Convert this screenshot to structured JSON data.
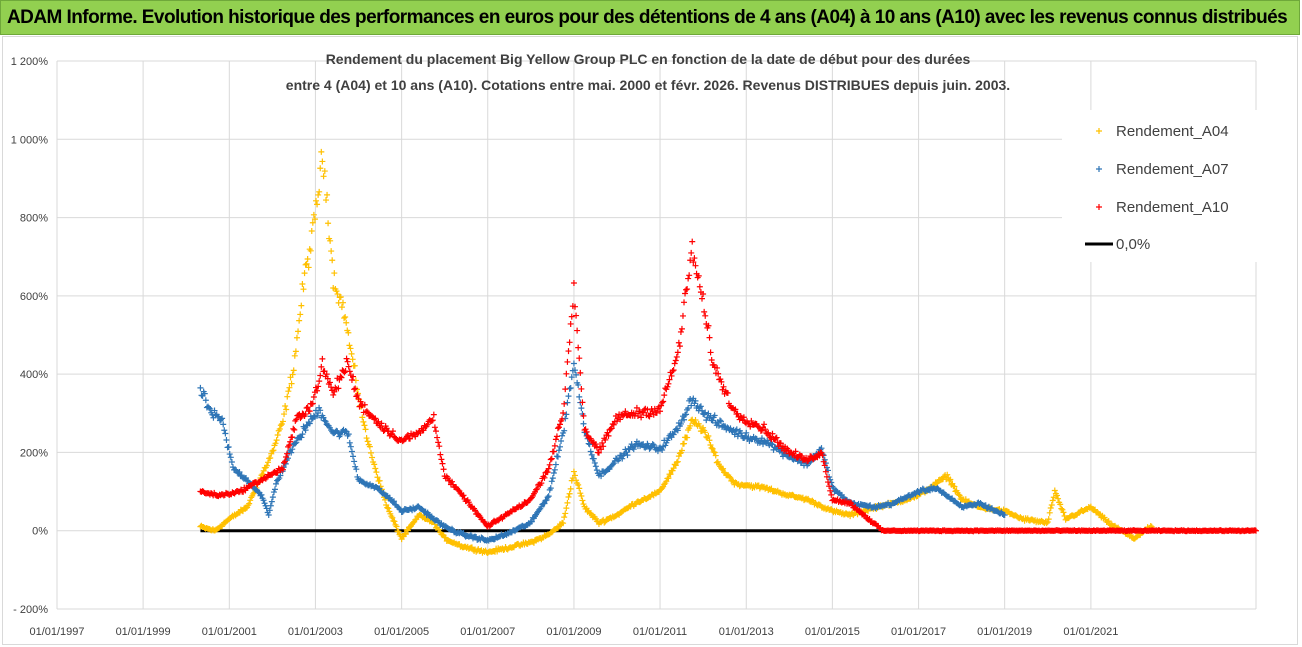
{
  "banner": {
    "title": "ADAM Informe. Evolution historique des performances en euros pour des détentions de 4 ans (A04) à 10 ans (A10) avec les revenus connus distribués"
  },
  "colors": {
    "banner_bg": "#92d050",
    "A04": "#ffc000",
    "A07": "#2e75b6",
    "A10": "#ff0000",
    "zero": "#000000",
    "grid": "#d9d9d9"
  },
  "chart_data": {
    "type": "scatter",
    "title_lines": [
      "Rendement du placement Big Yellow Group PLC en fonction de la date de début pour des durées",
      "entre 4 (A04) et 10 ans (A10). Cotations entre mai. 2000 et févr. 2026. Revenus DISTRIBUES depuis juin. 2003."
    ],
    "xlabel": "",
    "ylabel": "",
    "ylim": [
      -200,
      1200
    ],
    "xlim": [
      "1997-01-01",
      "2024-11-01"
    ],
    "y_ticks": [
      "1 200%",
      "1 000%",
      "800%",
      "600%",
      "400%",
      "200%",
      "0%",
      "- 200%"
    ],
    "x_ticks": [
      "01/01/1997",
      "01/01/1999",
      "01/01/2001",
      "01/01/2003",
      "01/01/2005",
      "01/01/2007",
      "01/01/2009",
      "01/01/2011",
      "01/01/2013",
      "01/01/2015",
      "01/01/2017",
      "01/01/2019",
      "01/01/2021"
    ],
    "grid": true,
    "legend_position": "top-right",
    "legend": [
      "Rendement_A04",
      "Rendement_A07",
      "Rendement_A10",
      "0,0%"
    ],
    "series": [
      {
        "name": "Rendement_A04",
        "marker": "+",
        "points": [
          [
            "2000-05-01",
            10
          ],
          [
            "2000-09-01",
            0
          ],
          [
            "2001-01-01",
            30
          ],
          [
            "2001-06-01",
            60
          ],
          [
            "2001-10-01",
            140
          ],
          [
            "2002-01-01",
            200
          ],
          [
            "2002-04-01",
            280
          ],
          [
            "2002-07-01",
            420
          ],
          [
            "2002-10-01",
            650
          ],
          [
            "2002-12-01",
            740
          ],
          [
            "2003-03-01",
            950
          ],
          [
            "2003-04-01",
            880
          ],
          [
            "2003-06-01",
            650
          ],
          [
            "2003-09-01",
            560
          ],
          [
            "2003-12-01",
            400
          ],
          [
            "2004-03-01",
            250
          ],
          [
            "2004-06-01",
            150
          ],
          [
            "2004-09-01",
            60
          ],
          [
            "2005-01-01",
            -20
          ],
          [
            "2005-06-01",
            40
          ],
          [
            "2005-10-01",
            20
          ],
          [
            "2006-01-01",
            -20
          ],
          [
            "2006-06-01",
            -40
          ],
          [
            "2007-01-01",
            -55
          ],
          [
            "2007-06-01",
            -45
          ],
          [
            "2008-01-01",
            -30
          ],
          [
            "2008-06-01",
            -10
          ],
          [
            "2008-10-01",
            20
          ],
          [
            "2009-01-01",
            150
          ],
          [
            "2009-04-01",
            60
          ],
          [
            "2009-08-01",
            20
          ],
          [
            "2010-01-01",
            40
          ],
          [
            "2010-06-01",
            70
          ],
          [
            "2011-01-01",
            100
          ],
          [
            "2011-06-01",
            180
          ],
          [
            "2011-10-01",
            280
          ],
          [
            "2012-01-01",
            260
          ],
          [
            "2012-06-01",
            160
          ],
          [
            "2012-10-01",
            120
          ],
          [
            "2013-06-01",
            110
          ],
          [
            "2014-01-01",
            90
          ],
          [
            "2014-06-01",
            80
          ],
          [
            "2015-01-01",
            50
          ],
          [
            "2015-06-01",
            40
          ],
          [
            "2016-01-01",
            60
          ],
          [
            "2016-06-01",
            70
          ],
          [
            "2017-01-01",
            90
          ],
          [
            "2017-09-01",
            140
          ],
          [
            "2018-01-01",
            80
          ],
          [
            "2018-06-01",
            60
          ],
          [
            "2019-01-01",
            50
          ],
          [
            "2019-06-01",
            30
          ],
          [
            "2020-01-01",
            20
          ],
          [
            "2020-03-01",
            100
          ],
          [
            "2020-06-01",
            30
          ],
          [
            "2021-01-01",
            60
          ],
          [
            "2021-06-01",
            20
          ],
          [
            "2022-01-01",
            -20
          ],
          [
            "2022-04-01",
            0
          ],
          [
            "2022-06-01",
            10
          ]
        ]
      },
      {
        "name": "Rendement_A07",
        "marker": "+",
        "points": [
          [
            "2000-05-01",
            360
          ],
          [
            "2000-08-01",
            300
          ],
          [
            "2000-11-01",
            280
          ],
          [
            "2001-02-01",
            160
          ],
          [
            "2001-06-01",
            130
          ],
          [
            "2001-10-01",
            90
          ],
          [
            "2001-12-01",
            40
          ],
          [
            "2002-02-01",
            120
          ],
          [
            "2002-06-01",
            200
          ],
          [
            "2002-10-01",
            260
          ],
          [
            "2003-02-01",
            310
          ],
          [
            "2003-06-01",
            250
          ],
          [
            "2003-10-01",
            250
          ],
          [
            "2004-01-01",
            130
          ],
          [
            "2004-06-01",
            110
          ],
          [
            "2004-10-01",
            80
          ],
          [
            "2005-01-01",
            50
          ],
          [
            "2005-06-01",
            60
          ],
          [
            "2005-10-01",
            30
          ],
          [
            "2006-01-01",
            10
          ],
          [
            "2006-06-01",
            -10
          ],
          [
            "2007-01-01",
            -25
          ],
          [
            "2007-06-01",
            -10
          ],
          [
            "2008-01-01",
            20
          ],
          [
            "2008-06-01",
            90
          ],
          [
            "2008-10-01",
            250
          ],
          [
            "2009-01-01",
            430
          ],
          [
            "2009-04-01",
            260
          ],
          [
            "2009-08-01",
            140
          ],
          [
            "2010-01-01",
            180
          ],
          [
            "2010-06-01",
            220
          ],
          [
            "2011-01-01",
            210
          ],
          [
            "2011-06-01",
            260
          ],
          [
            "2011-10-01",
            340
          ],
          [
            "2012-01-01",
            300
          ],
          [
            "2012-06-01",
            270
          ],
          [
            "2013-01-01",
            240
          ],
          [
            "2013-06-01",
            230
          ],
          [
            "2014-01-01",
            190
          ],
          [
            "2014-06-01",
            170
          ],
          [
            "2014-10-01",
            210
          ],
          [
            "2015-01-01",
            110
          ],
          [
            "2015-06-01",
            70
          ],
          [
            "2016-01-01",
            60
          ],
          [
            "2016-06-01",
            70
          ],
          [
            "2017-01-01",
            100
          ],
          [
            "2017-06-01",
            110
          ],
          [
            "2018-01-01",
            60
          ],
          [
            "2018-06-01",
            70
          ],
          [
            "2019-01-01",
            40
          ]
        ]
      },
      {
        "name": "Rendement_A10",
        "marker": "+",
        "points": [
          [
            "2000-05-01",
            100
          ],
          [
            "2000-10-01",
            90
          ],
          [
            "2001-04-01",
            100
          ],
          [
            "2001-10-01",
            130
          ],
          [
            "2002-04-01",
            160
          ],
          [
            "2002-08-01",
            290
          ],
          [
            "2002-12-01",
            320
          ],
          [
            "2003-03-01",
            420
          ],
          [
            "2003-06-01",
            350
          ],
          [
            "2003-10-01",
            430
          ],
          [
            "2004-01-01",
            330
          ],
          [
            "2004-06-01",
            280
          ],
          [
            "2004-10-01",
            250
          ],
          [
            "2005-01-01",
            230
          ],
          [
            "2005-06-01",
            250
          ],
          [
            "2005-10-01",
            290
          ],
          [
            "2006-01-01",
            140
          ],
          [
            "2006-06-01",
            90
          ],
          [
            "2007-01-01",
            10
          ],
          [
            "2007-06-01",
            40
          ],
          [
            "2008-01-01",
            80
          ],
          [
            "2008-06-01",
            160
          ],
          [
            "2008-10-01",
            300
          ],
          [
            "2009-01-01",
            620
          ],
          [
            "2009-04-01",
            260
          ],
          [
            "2009-08-01",
            200
          ],
          [
            "2010-01-01",
            290
          ],
          [
            "2010-06-01",
            300
          ],
          [
            "2011-01-01",
            310
          ],
          [
            "2011-06-01",
            450
          ],
          [
            "2011-10-01",
            720
          ],
          [
            "2012-01-01",
            580
          ],
          [
            "2012-04-01",
            420
          ],
          [
            "2012-10-01",
            300
          ],
          [
            "2013-06-01",
            260
          ],
          [
            "2014-01-01",
            200
          ],
          [
            "2014-06-01",
            180
          ],
          [
            "2014-10-01",
            200
          ],
          [
            "2015-01-01",
            80
          ],
          [
            "2015-06-01",
            70
          ],
          [
            "2016-03-01",
            0
          ],
          [
            "2018-01-01",
            0
          ],
          [
            "2020-01-01",
            0
          ],
          [
            "2022-01-01",
            0
          ],
          [
            "2024-11-01",
            0
          ]
        ]
      },
      {
        "name": "0,0%",
        "type": "line",
        "points": [
          [
            "2000-05-01",
            0
          ],
          [
            "2024-11-01",
            0
          ]
        ]
      }
    ]
  }
}
